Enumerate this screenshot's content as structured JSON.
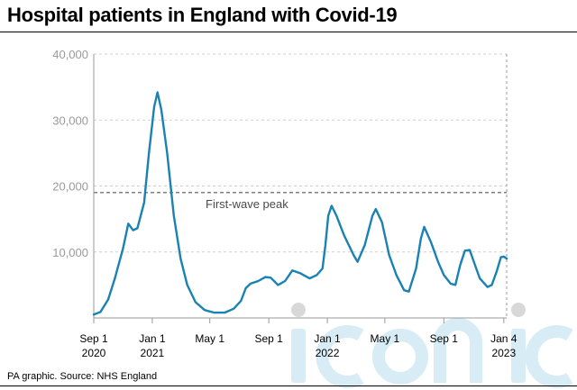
{
  "title": "Hospital patients in England with Covid-19",
  "source": "PA graphic. Source: NHS England",
  "colors": {
    "line": "#1a82b3",
    "grid": "#cfcfcf",
    "axis": "#999999",
    "reference": "#555555",
    "watermark": "#d7ecf4"
  },
  "chart_data": {
    "type": "line",
    "title": "Hospital patients in England with Covid-19",
    "xlabel": "",
    "ylabel": "",
    "ylim": [
      0,
      40000
    ],
    "yticks": [
      "40,000",
      "30,000",
      "20,000",
      "10,000"
    ],
    "xlim": [
      "2020-09-01",
      "2023-01-10"
    ],
    "xticks": [
      {
        "date": "2020-09-01",
        "label": "Sep 1",
        "sub": "2020"
      },
      {
        "date": "2021-01-01",
        "label": "Jan 1",
        "sub": "2021"
      },
      {
        "date": "2021-05-01",
        "label": "May 1",
        "sub": ""
      },
      {
        "date": "2021-09-01",
        "label": "Sep 1",
        "sub": ""
      },
      {
        "date": "2022-01-01",
        "label": "Jan 1",
        "sub": "2022"
      },
      {
        "date": "2022-05-01",
        "label": "May 1",
        "sub": ""
      },
      {
        "date": "2022-09-01",
        "label": "Sep 1",
        "sub": ""
      },
      {
        "date": "2023-01-04",
        "label": "Jan 4",
        "sub": "2023"
      }
    ],
    "grid": "horizontal dashed",
    "reference_line": {
      "value": 19000,
      "label": "First-wave peak"
    },
    "series": [
      {
        "points": [
          [
            "2020-09-01",
            500
          ],
          [
            "2020-09-15",
            900
          ],
          [
            "2020-10-01",
            2800
          ],
          [
            "2020-10-15",
            6000
          ],
          [
            "2020-11-01",
            10500
          ],
          [
            "2020-11-12",
            14300
          ],
          [
            "2020-11-22",
            13300
          ],
          [
            "2020-12-01",
            13600
          ],
          [
            "2020-12-15",
            17500
          ],
          [
            "2020-12-25",
            25000
          ],
          [
            "2021-01-05",
            32000
          ],
          [
            "2021-01-12",
            34200
          ],
          [
            "2021-01-20",
            31500
          ],
          [
            "2021-02-01",
            25000
          ],
          [
            "2021-02-15",
            15500
          ],
          [
            "2021-03-01",
            9000
          ],
          [
            "2021-03-15",
            5000
          ],
          [
            "2021-04-01",
            2400
          ],
          [
            "2021-04-20",
            1200
          ],
          [
            "2021-05-10",
            800
          ],
          [
            "2021-06-01",
            800
          ],
          [
            "2021-06-20",
            1400
          ],
          [
            "2021-07-05",
            2600
          ],
          [
            "2021-07-15",
            4500
          ],
          [
            "2021-07-25",
            5200
          ],
          [
            "2021-08-10",
            5600
          ],
          [
            "2021-08-25",
            6200
          ],
          [
            "2021-09-05",
            6100
          ],
          [
            "2021-09-20",
            5000
          ],
          [
            "2021-10-05",
            5600
          ],
          [
            "2021-10-20",
            7200
          ],
          [
            "2021-11-05",
            6800
          ],
          [
            "2021-11-25",
            6000
          ],
          [
            "2021-12-10",
            6500
          ],
          [
            "2021-12-22",
            7500
          ],
          [
            "2021-12-28",
            11000
          ],
          [
            "2022-01-03",
            15500
          ],
          [
            "2022-01-10",
            17000
          ],
          [
            "2022-01-20",
            15500
          ],
          [
            "2022-02-05",
            12500
          ],
          [
            "2022-02-25",
            9500
          ],
          [
            "2022-03-05",
            8500
          ],
          [
            "2022-03-20",
            11000
          ],
          [
            "2022-04-05",
            15500
          ],
          [
            "2022-04-12",
            16500
          ],
          [
            "2022-04-25",
            14500
          ],
          [
            "2022-05-10",
            9500
          ],
          [
            "2022-05-25",
            6500
          ],
          [
            "2022-06-10",
            4200
          ],
          [
            "2022-06-20",
            4000
          ],
          [
            "2022-07-05",
            7500
          ],
          [
            "2022-07-15",
            12000
          ],
          [
            "2022-07-22",
            13800
          ],
          [
            "2022-08-05",
            11500
          ],
          [
            "2022-08-20",
            8500
          ],
          [
            "2022-09-01",
            6500
          ],
          [
            "2022-09-15",
            5200
          ],
          [
            "2022-09-25",
            5000
          ],
          [
            "2022-10-05",
            8000
          ],
          [
            "2022-10-15",
            10200
          ],
          [
            "2022-10-25",
            10300
          ],
          [
            "2022-11-05",
            8000
          ],
          [
            "2022-11-15",
            6000
          ],
          [
            "2022-12-01",
            4700
          ],
          [
            "2022-12-10",
            5000
          ],
          [
            "2022-12-20",
            7000
          ],
          [
            "2022-12-29",
            9200
          ],
          [
            "2023-01-04",
            9300
          ],
          [
            "2023-01-10",
            9000
          ]
        ]
      }
    ]
  }
}
